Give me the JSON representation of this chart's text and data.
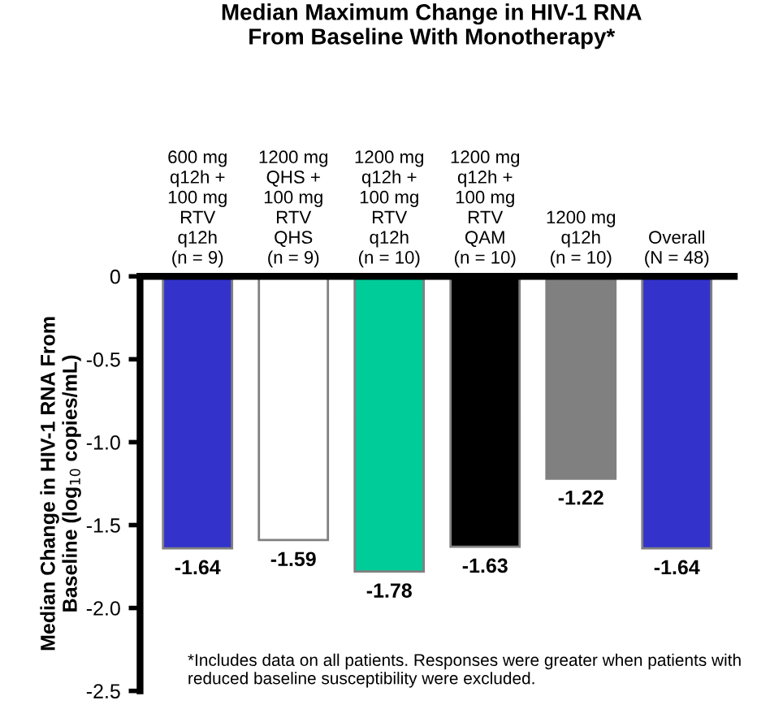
{
  "chart_data": {
    "type": "bar",
    "title": "Median Maximum Change in HIV-1 RNA\nFrom Baseline With Monotherapy*",
    "ylabel": "Median Change in HIV-1 RNA From\nBaseline (log$_{10}$ copies/mL)",
    "categories": [
      "600 mg\nq12h +\n100 mg\nRTV\nq12h\n(n = 9)",
      "1200 mg\nQHS +\n100 mg\nRTV\nQHS\n(n = 9)",
      "1200 mg\nq12h +\n100 mg\nRTV\nq12h\n(n = 10)",
      "1200 mg\nq12h +\n100 mg\nRTV\nQAM\n(n = 10)",
      "1200 mg\nq12h\n(n = 10)",
      "Overall\n(N = 48)"
    ],
    "values": [
      -1.64,
      -1.59,
      -1.78,
      -1.63,
      -1.22,
      -1.64
    ],
    "colors": [
      "#3333cc",
      "#ffffff",
      "#00cc99",
      "#000000",
      "#808080",
      "#3333cc"
    ],
    "ylim": [
      -2.5,
      0
    ],
    "yticks": [
      0,
      -0.5,
      {
        "value": -1,
        "label": "-1.0"
      },
      -1.5,
      {
        "value": -2,
        "label": "-2.0"
      },
      -2.5
    ],
    "data_labels": true,
    "grid": false,
    "legend": false,
    "annotations": [
      "*Includes data on all patients. Responses were greater when patients with reduced baseline susceptibility were excluded."
    ]
  }
}
